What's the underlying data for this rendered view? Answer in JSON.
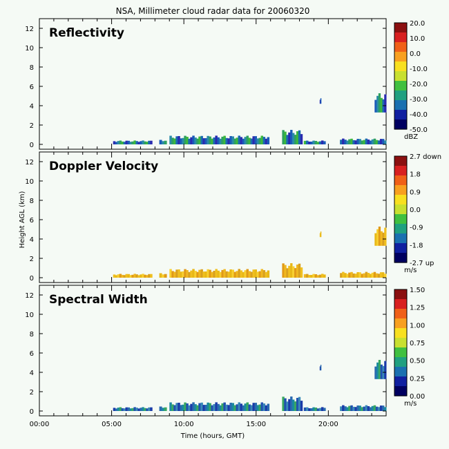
{
  "chart_data": {
    "type": "heatmap",
    "title": "NSA, Millimeter cloud radar data for 20060320",
    "xlabel": "Time (hours, GMT)",
    "ylabel": "Height AGL (km)",
    "x_ticks": [
      "00:00",
      "05:00",
      "10:00",
      "15:00",
      "20:00"
    ],
    "x_tick_values": [
      0,
      5,
      10,
      15,
      20
    ],
    "xlim": [
      0,
      24
    ],
    "ylim": [
      -0.5,
      13
    ],
    "y_ticks": [
      0,
      2,
      4,
      6,
      8,
      10,
      12
    ],
    "panels": [
      {
        "name": "Reflectivity",
        "colorbar_ticks": [
          "20.0",
          "10.0",
          "0.0",
          "-10.0",
          "-20.0",
          "-30.0",
          "-40.0",
          "-50.0"
        ],
        "colorbar_unit": "dBZ",
        "colors": [
          "#2a2ab0",
          "#1a5ab8",
          "#2a8aa8",
          "#2ea060",
          "#3cb83c",
          "#1a6ab0"
        ]
      },
      {
        "name": "Doppler Velocity",
        "colorbar_ticks": [
          "2.7 down",
          "1.8",
          "0.9",
          "0.0",
          "-0.9",
          "-1.8",
          "-2.7 up"
        ],
        "colorbar_unit": "m/s",
        "colors": [
          "#f0c020",
          "#e8b818",
          "#f8d030",
          "#e09a18",
          "#f0b820",
          "#d8a020"
        ]
      },
      {
        "name": "Spectral Width",
        "colorbar_ticks": [
          "1.50",
          "1.25",
          "1.00",
          "0.75",
          "0.50",
          "0.25",
          "0.00"
        ],
        "colorbar_unit": "m/s",
        "colors": [
          "#1a3aa8",
          "#2a6ab0",
          "#1a8aa0",
          "#3aa860",
          "#2050b0",
          "#3a8ab8"
        ]
      }
    ],
    "cloud_segments": [
      {
        "x0": 5.1,
        "x1": 7.8,
        "y0": 0.0,
        "y1": 0.4
      },
      {
        "x0": 8.3,
        "x1": 8.8,
        "y0": 0.0,
        "y1": 0.5
      },
      {
        "x0": 9.0,
        "x1": 15.9,
        "y0": 0.0,
        "y1": 0.9
      },
      {
        "x0": 16.8,
        "x1": 18.2,
        "y0": 0.0,
        "y1": 1.5
      },
      {
        "x0": 18.3,
        "x1": 19.8,
        "y0": 0.0,
        "y1": 0.4
      },
      {
        "x0": 20.8,
        "x1": 24.0,
        "y0": 0.0,
        "y1": 0.6
      },
      {
        "x0": 19.4,
        "x1": 19.5,
        "y0": 4.2,
        "y1": 4.8
      },
      {
        "x0": 23.2,
        "x1": 24.0,
        "y0": 3.3,
        "y1": 5.3
      }
    ]
  }
}
